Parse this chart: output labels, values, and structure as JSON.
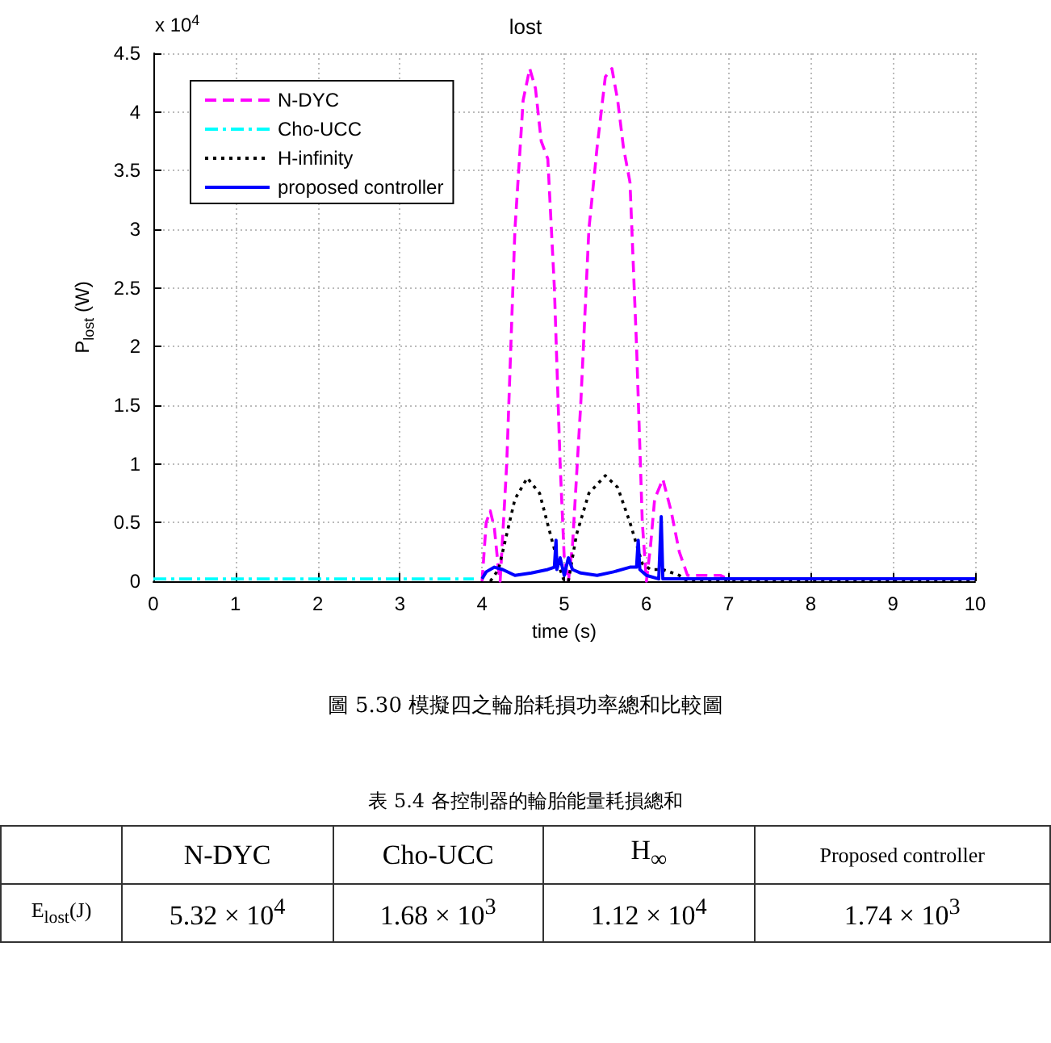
{
  "chart_data": [
    {
      "type": "line",
      "title": "lost",
      "xlabel": "time (s)",
      "ylabel": "P$_{lost}$ (W)",
      "annotations": [
        "x 10$^{4}$",
        "圖 5.30 模擬四之輪胎耗損功率總和比較圖"
      ],
      "xlim": [
        0,
        10
      ],
      "xticks": [
        0,
        1,
        2,
        3,
        4,
        5,
        6,
        7,
        8,
        9,
        10
      ],
      "ylim": [
        0,
        4.5
      ],
      "yticks": [
        0,
        0.5,
        1,
        1.5,
        2,
        2.5,
        3,
        3.5,
        4,
        4.5
      ],
      "grid": true,
      "legend": "top left",
      "marker": "none",
      "series": [
        {
          "name": "N-DYC",
          "color": "#ff00ff",
          "line_style": "dashed",
          "x": [
            4,
            4.05,
            4.1,
            4.15,
            4.2,
            4.22,
            4.3,
            4.4,
            4.5,
            4.58,
            4.65,
            4.72,
            4.8,
            4.88,
            4.95,
            5,
            5.05,
            5.1,
            5.2,
            5.3,
            5.4,
            5.5,
            5.58,
            5.65,
            5.72,
            5.8,
            5.88,
            5.95,
            6,
            6.05,
            6.1,
            6.2,
            6.3,
            6.4,
            6.5,
            6.6,
            6.9,
            7
          ],
          "values": [
            0,
            0.5,
            0.6,
            0.45,
            0.1,
            0,
            1,
            3,
            4.1,
            4.37,
            4.2,
            3.75,
            3.6,
            2.5,
            1,
            0.2,
            0,
            0.3,
            1.5,
            3,
            3.7,
            4.3,
            4.37,
            4.1,
            3.7,
            3.4,
            2,
            0.5,
            0,
            0.3,
            0.7,
            0.87,
            0.6,
            0.25,
            0.05,
            0.05,
            0.05,
            0.02
          ]
        },
        {
          "name": "Cho-UCC",
          "color": "#00ffff",
          "line_style": "dashdot",
          "x": [
            0,
            2,
            3.9
          ],
          "values": [
            0.02,
            0.02,
            0.02
          ]
        },
        {
          "name": "H-infinity",
          "color": "#000000",
          "line_style": "dotted",
          "x": [
            4.1,
            4.2,
            4.3,
            4.4,
            4.55,
            4.7,
            4.85,
            4.95,
            5,
            5.05,
            5.15,
            5.3,
            5.5,
            5.65,
            5.8,
            5.95,
            6.05,
            6.2,
            6.4,
            6.5,
            10
          ],
          "values": [
            0,
            0.1,
            0.4,
            0.7,
            0.88,
            0.75,
            0.35,
            0.1,
            0,
            0,
            0.4,
            0.75,
            0.9,
            0.8,
            0.5,
            0.15,
            0.1,
            0.1,
            0.05,
            0,
            0
          ]
        },
        {
          "name": "proposed controller",
          "color": "#0000ff",
          "line_style": "solid",
          "x": [
            4,
            4.05,
            4.15,
            4.25,
            4.4,
            4.6,
            4.8,
            4.88,
            4.9,
            4.91,
            4.95,
            5,
            5.05,
            5.1,
            5.2,
            5.4,
            5.6,
            5.8,
            5.88,
            5.9,
            5.92,
            6,
            6.15,
            6.18,
            6.2,
            10
          ],
          "values": [
            0.02,
            0.08,
            0.12,
            0.1,
            0.05,
            0.07,
            0.1,
            0.12,
            0.35,
            0.1,
            0.2,
            0.05,
            0.2,
            0.1,
            0.07,
            0.05,
            0.08,
            0.12,
            0.12,
            0.35,
            0.1,
            0.05,
            0.02,
            0.55,
            0.02,
            0.02
          ]
        }
      ]
    },
    {
      "type": "other",
      "title": "表 5.4 各控制器的輪胎能量耗損總和",
      "annotations": [
        "N-DYC",
        "Cho-UCC",
        "H$_{∞}$",
        "Proposed controller",
        "E$_{lost}$(J)",
        "5.32 × 10$^{4}$",
        "1.68 × 10$^{3}$",
        "1.12 × 10$^{4}$",
        "1.74 × 10$^{3}$"
      ]
    }
  ]
}
